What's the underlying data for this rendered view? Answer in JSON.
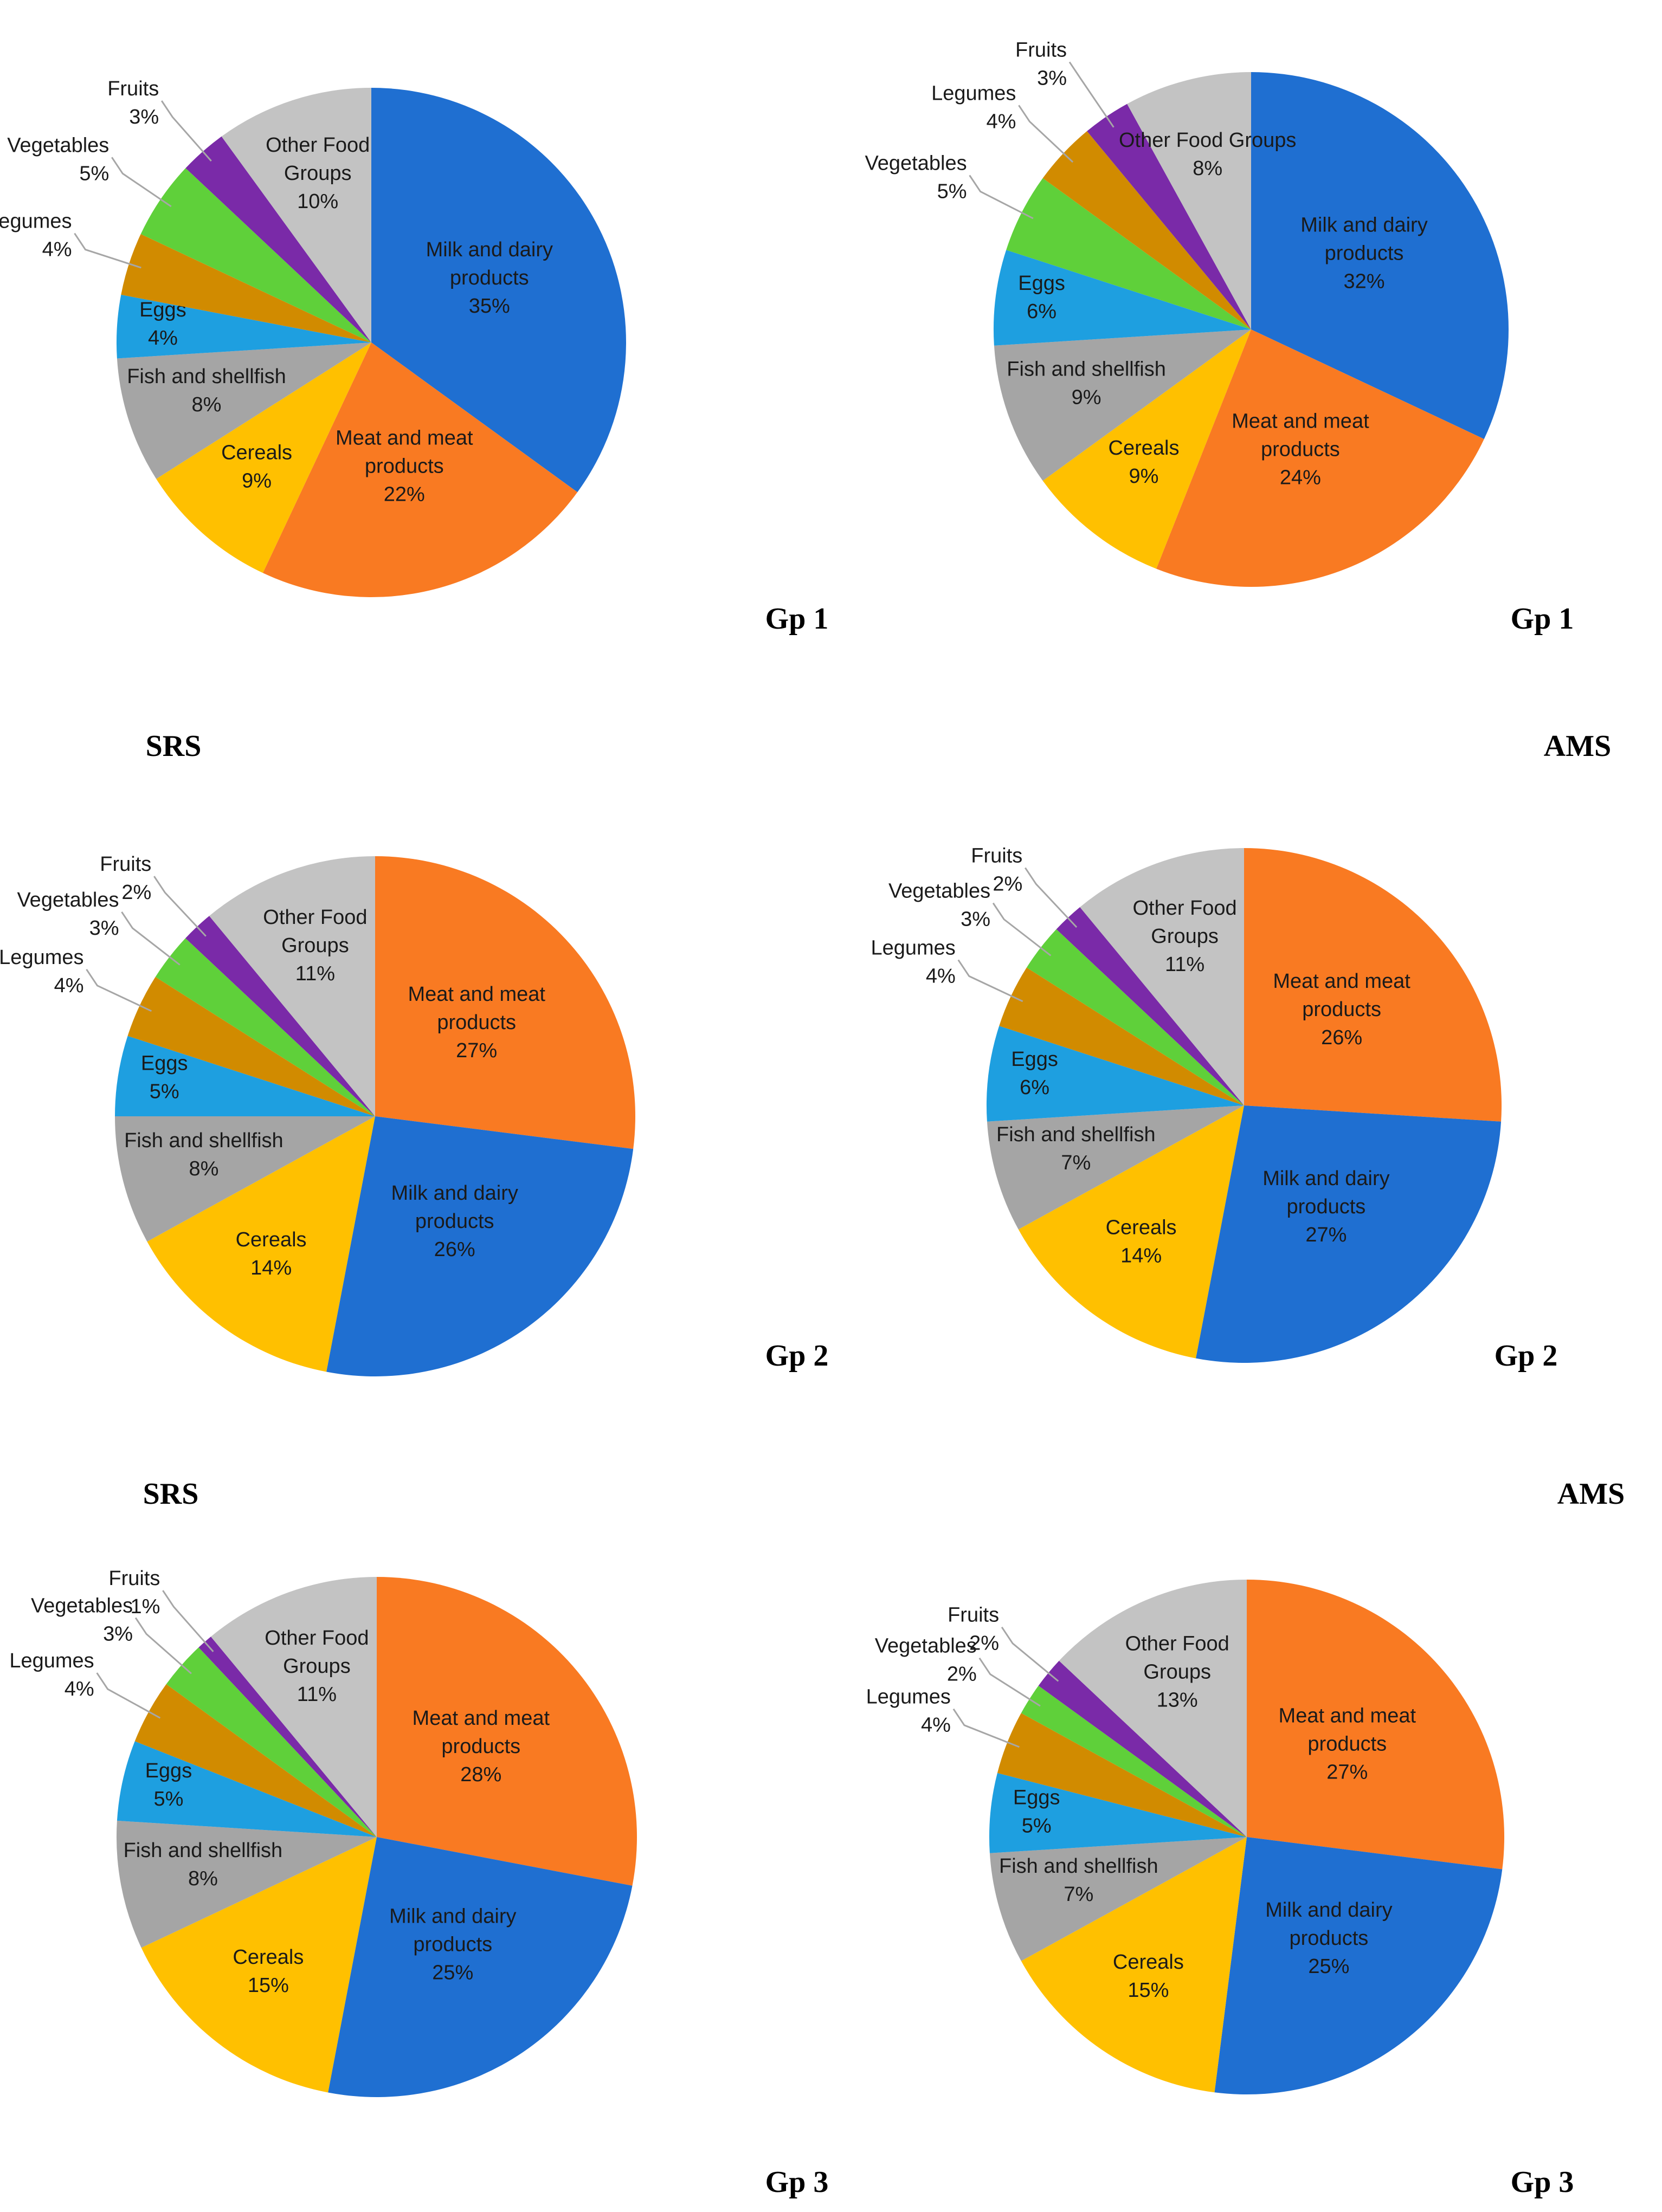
{
  "colors": {
    "milk": "#1f6fd1",
    "meat": "#f97a22",
    "cereals": "#ffc000",
    "fish": "#a5a5a5",
    "eggs": "#1e9fe0",
    "legumes": "#d18b00",
    "vegetables": "#5fd03a",
    "fruits": "#7a2aa8",
    "other": "#c3c3c3"
  },
  "captions": {
    "srs_1": "SRS",
    "ams_1": "AMS",
    "srs_2": "SRS",
    "ams_2": "AMS"
  },
  "chart_data": [
    {
      "type": "pie",
      "title": "Gp 1",
      "method": "SRS",
      "slices": [
        {
          "key": "milk",
          "label": [
            "Milk and dairy",
            "products"
          ],
          "value": 35,
          "pct": "35%"
        },
        {
          "key": "meat",
          "label": [
            "Meat and meat",
            "products"
          ],
          "value": 22,
          "pct": "22%"
        },
        {
          "key": "cereals",
          "label": [
            "Cereals"
          ],
          "value": 9,
          "pct": "9%"
        },
        {
          "key": "fish",
          "label": [
            "Fish and shellfish"
          ],
          "value": 8,
          "pct": "8%"
        },
        {
          "key": "eggs",
          "label": [
            "Eggs"
          ],
          "value": 4,
          "pct": "4%"
        },
        {
          "key": "legumes",
          "label": [
            "Legumes"
          ],
          "value": 4,
          "pct": "4%"
        },
        {
          "key": "vegetables",
          "label": [
            "Vegetables"
          ],
          "value": 5,
          "pct": "5%"
        },
        {
          "key": "fruits",
          "label": [
            "Fruits"
          ],
          "value": 3,
          "pct": "3%"
        },
        {
          "key": "other",
          "label": [
            "Other Food",
            "Groups"
          ],
          "value": 10,
          "pct": "10%"
        }
      ]
    },
    {
      "type": "pie",
      "title": "Gp 1",
      "method": "AMS",
      "slices": [
        {
          "key": "milk",
          "label": [
            "Milk and dairy",
            "products"
          ],
          "value": 32,
          "pct": "32%"
        },
        {
          "key": "meat",
          "label": [
            "Meat and meat",
            "products"
          ],
          "value": 24,
          "pct": "24%"
        },
        {
          "key": "cereals",
          "label": [
            "Cereals"
          ],
          "value": 9,
          "pct": "9%"
        },
        {
          "key": "fish",
          "label": [
            "Fish and shellfish"
          ],
          "value": 9,
          "pct": "9%"
        },
        {
          "key": "eggs",
          "label": [
            "Eggs"
          ],
          "value": 6,
          "pct": "6%"
        },
        {
          "key": "vegetables",
          "label": [
            "Vegetables"
          ],
          "value": 5,
          "pct": "5%"
        },
        {
          "key": "legumes",
          "label": [
            "Legumes"
          ],
          "value": 4,
          "pct": "4%"
        },
        {
          "key": "fruits",
          "label": [
            "Fruits"
          ],
          "value": 3,
          "pct": "3%"
        },
        {
          "key": "other",
          "label": [
            "Other Food Groups"
          ],
          "value": 8,
          "pct": "8%"
        }
      ]
    },
    {
      "type": "pie",
      "title": "Gp 2",
      "method": "SRS",
      "slices": [
        {
          "key": "meat",
          "label": [
            "Meat and meat",
            "products"
          ],
          "value": 27,
          "pct": "27%"
        },
        {
          "key": "milk",
          "label": [
            "Milk and dairy",
            "products"
          ],
          "value": 26,
          "pct": "26%"
        },
        {
          "key": "cereals",
          "label": [
            "Cereals"
          ],
          "value": 14,
          "pct": "14%"
        },
        {
          "key": "fish",
          "label": [
            "Fish and shellfish"
          ],
          "value": 8,
          "pct": "8%"
        },
        {
          "key": "eggs",
          "label": [
            "Eggs"
          ],
          "value": 5,
          "pct": "5%"
        },
        {
          "key": "legumes",
          "label": [
            "Legumes"
          ],
          "value": 4,
          "pct": "4%"
        },
        {
          "key": "vegetables",
          "label": [
            "Vegetables"
          ],
          "value": 3,
          "pct": "3%"
        },
        {
          "key": "fruits",
          "label": [
            "Fruits"
          ],
          "value": 2,
          "pct": "2%"
        },
        {
          "key": "other",
          "label": [
            "Other Food",
            "Groups"
          ],
          "value": 11,
          "pct": "11%"
        }
      ]
    },
    {
      "type": "pie",
      "title": "Gp 2",
      "method": "AMS",
      "slices": [
        {
          "key": "meat",
          "label": [
            "Meat and meat",
            "products"
          ],
          "value": 26,
          "pct": "26%"
        },
        {
          "key": "milk",
          "label": [
            "Milk and dairy",
            "products"
          ],
          "value": 27,
          "pct": "27%"
        },
        {
          "key": "cereals",
          "label": [
            "Cereals"
          ],
          "value": 14,
          "pct": "14%"
        },
        {
          "key": "fish",
          "label": [
            "Fish and shellfish"
          ],
          "value": 7,
          "pct": "7%"
        },
        {
          "key": "eggs",
          "label": [
            "Eggs"
          ],
          "value": 6,
          "pct": "6%"
        },
        {
          "key": "legumes",
          "label": [
            "Legumes"
          ],
          "value": 4,
          "pct": "4%"
        },
        {
          "key": "vegetables",
          "label": [
            "Vegetables"
          ],
          "value": 3,
          "pct": "3%"
        },
        {
          "key": "fruits",
          "label": [
            "Fruits"
          ],
          "value": 2,
          "pct": "2%"
        },
        {
          "key": "other",
          "label": [
            "Other Food",
            "Groups"
          ],
          "value": 11,
          "pct": "11%"
        }
      ]
    },
    {
      "type": "pie",
      "title": "Gp 3",
      "method": "SRS",
      "slices": [
        {
          "key": "meat",
          "label": [
            "Meat and meat",
            "products"
          ],
          "value": 28,
          "pct": "28%"
        },
        {
          "key": "milk",
          "label": [
            "Milk and dairy",
            "products"
          ],
          "value": 25,
          "pct": "25%"
        },
        {
          "key": "cereals",
          "label": [
            "Cereals"
          ],
          "value": 15,
          "pct": "15%"
        },
        {
          "key": "fish",
          "label": [
            "Fish and shellfish"
          ],
          "value": 8,
          "pct": "8%"
        },
        {
          "key": "eggs",
          "label": [
            "Eggs"
          ],
          "value": 5,
          "pct": "5%"
        },
        {
          "key": "legumes",
          "label": [
            "Legumes"
          ],
          "value": 4,
          "pct": "4%"
        },
        {
          "key": "vegetables",
          "label": [
            "Vegetables"
          ],
          "value": 3,
          "pct": "3%"
        },
        {
          "key": "fruits",
          "label": [
            "Fruits"
          ],
          "value": 1,
          "pct": "1%"
        },
        {
          "key": "other",
          "label": [
            "Other Food",
            "Groups"
          ],
          "value": 11,
          "pct": "11%"
        }
      ]
    },
    {
      "type": "pie",
      "title": "Gp 3",
      "method": "AMS",
      "slices": [
        {
          "key": "meat",
          "label": [
            "Meat and meat",
            "products"
          ],
          "value": 27,
          "pct": "27%"
        },
        {
          "key": "milk",
          "label": [
            "Milk and dairy",
            "products"
          ],
          "value": 25,
          "pct": "25%"
        },
        {
          "key": "cereals",
          "label": [
            "Cereals"
          ],
          "value": 15,
          "pct": "15%"
        },
        {
          "key": "fish",
          "label": [
            "Fish and shellfish"
          ],
          "value": 7,
          "pct": "7%"
        },
        {
          "key": "eggs",
          "label": [
            "Eggs"
          ],
          "value": 5,
          "pct": "5%"
        },
        {
          "key": "legumes",
          "label": [
            "Legumes"
          ],
          "value": 4,
          "pct": "4%"
        },
        {
          "key": "vegetables",
          "label": [
            "Vegetables"
          ],
          "value": 2,
          "pct": "2%"
        },
        {
          "key": "fruits",
          "label": [
            "Fruits"
          ],
          "value": 2,
          "pct": "2%"
        },
        {
          "key": "other",
          "label": [
            "Other Food",
            "Groups"
          ],
          "value": 13,
          "pct": "13%"
        }
      ]
    }
  ]
}
